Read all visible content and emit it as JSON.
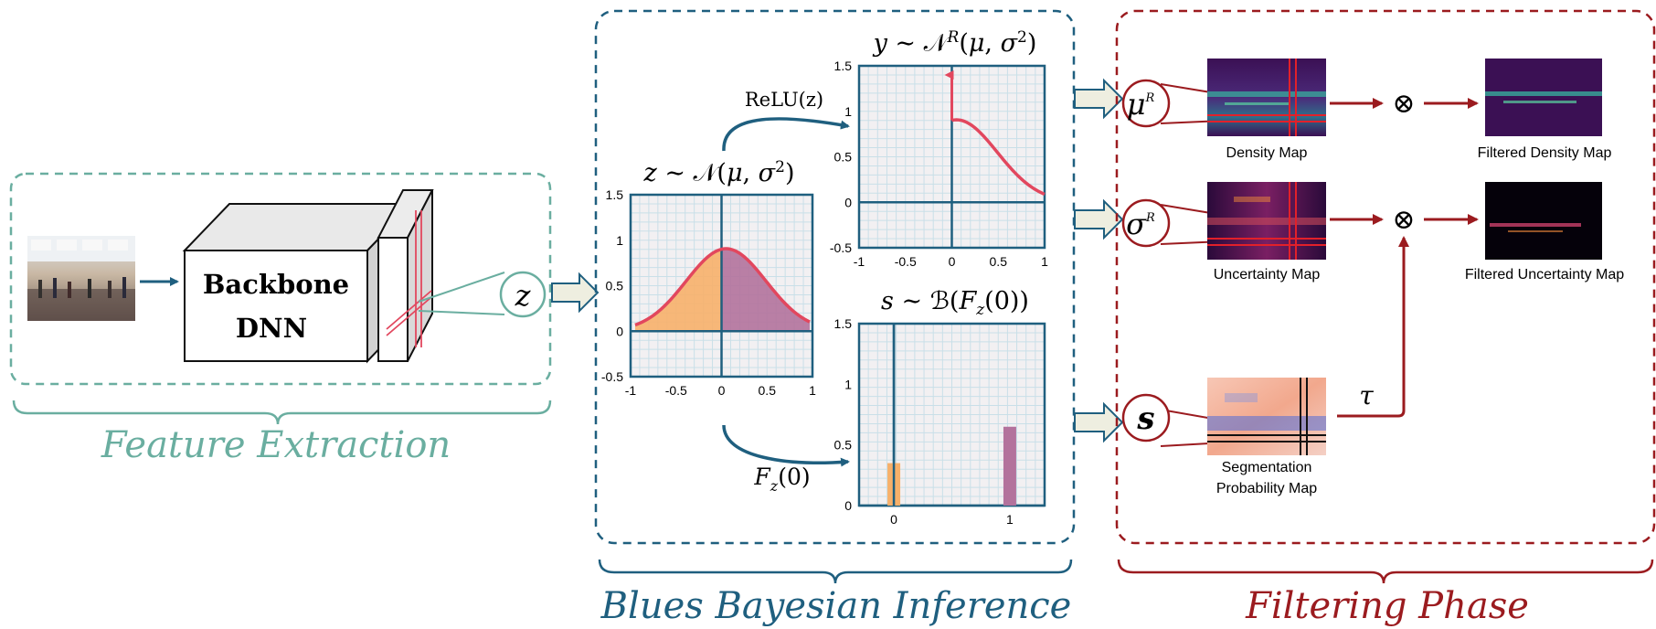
{
  "feature_extraction": {
    "section_label": "Feature Extraction",
    "backbone_line1": "Backbone",
    "backbone_line2": "DNN",
    "latent_symbol": "z"
  },
  "bayesian_inference": {
    "section_label": "Blues Bayesian Inference",
    "relu_label": "ReLU(z)",
    "cdf_label": "F",
    "cdf_sub": "z",
    "cdf_arg": "(0)"
  },
  "filtering": {
    "section_label": "Filtering Phase",
    "mu_symbol": "μ",
    "sigma_symbol": "σ",
    "s_symbol": "s",
    "superscript": "R",
    "tau_symbol": "τ",
    "otimes": "⊗",
    "density_map": "Density Map",
    "filtered_density_map": "Filtered Density Map",
    "uncertainty_map": "Uncertainty Map",
    "filtered_uncertainty_map": "Filtered Uncertainty Map",
    "segmentation_line1": "Segmentation",
    "segmentation_line2": "Probability Map"
  },
  "colors": {
    "teal": "#6aaea0",
    "blue": "#1f5f7f",
    "darkred": "#9b1b1f",
    "pink": "#e2475e",
    "orange": "#f7b06a",
    "purple": "#b3729c"
  },
  "chart_data": [
    {
      "type": "area",
      "title": "z ~ N(μ, σ²)",
      "xlim": [
        -1,
        1
      ],
      "ylim": [
        -0.5,
        1.5
      ],
      "x_ticks": [
        "-1",
        "-0.5",
        "0",
        "0.5",
        "1"
      ],
      "y_ticks": [
        "-0.5",
        "0",
        "0.5",
        "1",
        "1.5"
      ],
      "distribution": {
        "mean": 0.05,
        "std": 0.44
      },
      "regions": [
        {
          "range": [
            -0.95,
            0
          ],
          "color": "#f7b06a"
        },
        {
          "range": [
            0,
            0.97
          ],
          "color": "#b3729c"
        }
      ],
      "grid": true
    },
    {
      "type": "line",
      "title": "y ~ N^R(μ, σ²)",
      "xlim": [
        -1,
        1
      ],
      "ylim": [
        -0.5,
        1.5
      ],
      "x_ticks": [
        "-1",
        "-0.5",
        "0",
        "0.5",
        "1"
      ],
      "y_ticks": [
        "-0.5",
        "0",
        "0.5",
        "1",
        "1.5"
      ],
      "point_mass": {
        "x": 0,
        "height": 1.4
      },
      "distribution": {
        "mean": 0.05,
        "std": 0.44,
        "x_range": [
          0,
          1
        ]
      },
      "grid": true
    },
    {
      "type": "bar",
      "title": "s ~ B(F_z(0))",
      "xlim": [
        -0.3,
        1.3
      ],
      "ylim": [
        0,
        1.5
      ],
      "categories": [
        "0",
        "1"
      ],
      "values": [
        0.35,
        0.65
      ],
      "colors": [
        "#f7b06a",
        "#b3729c"
      ],
      "x_ticks": [
        "0",
        "1"
      ],
      "y_ticks": [
        "0",
        "0.5",
        "1",
        "1.5"
      ],
      "grid": true
    }
  ]
}
